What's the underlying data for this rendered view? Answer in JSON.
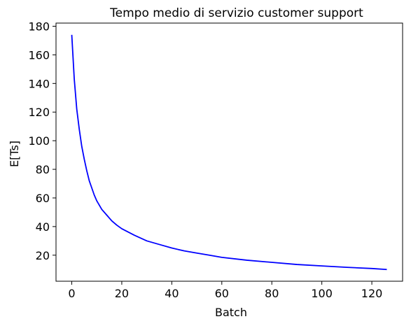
{
  "chart_data": {
    "type": "line",
    "title": "Tempo medio di servizio customer support",
    "xlabel": "Batch",
    "ylabel": "E[Ts]",
    "xlim": [
      -6.3,
      132.3
    ],
    "ylim": [
      1.8,
      182.2
    ],
    "xticks": [
      0,
      20,
      40,
      60,
      80,
      100,
      120
    ],
    "yticks": [
      20,
      40,
      60,
      80,
      100,
      120,
      140,
      160,
      180
    ],
    "grid": false,
    "legend": "none",
    "series": [
      {
        "color": "#0000ff",
        "x": [
          0,
          1,
          2,
          3,
          4,
          5,
          6,
          7,
          8,
          9,
          10,
          12,
          14,
          16,
          18,
          20,
          25,
          30,
          35,
          40,
          45,
          50,
          55,
          60,
          70,
          80,
          90,
          100,
          110,
          120,
          126
        ],
        "y": [
          174,
          143,
          122,
          108,
          96,
          87,
          79,
          72,
          67,
          62,
          58,
          52,
          48,
          44,
          41,
          38.5,
          34,
          30,
          27.5,
          25,
          23,
          21.5,
          20,
          18.5,
          16.5,
          15,
          13.5,
          12.5,
          11.5,
          10.7,
          10
        ]
      }
    ]
  }
}
